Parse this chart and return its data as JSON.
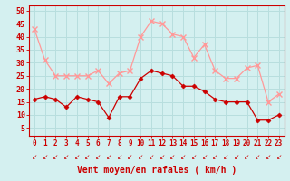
{
  "hours": [
    0,
    1,
    2,
    3,
    4,
    5,
    6,
    7,
    8,
    9,
    10,
    11,
    12,
    13,
    14,
    15,
    16,
    17,
    18,
    19,
    20,
    21,
    22,
    23
  ],
  "wind_mean": [
    16,
    17,
    16,
    13,
    17,
    16,
    15,
    9,
    17,
    17,
    24,
    27,
    26,
    25,
    21,
    21,
    19,
    16,
    15,
    15,
    15,
    8,
    8,
    10
  ],
  "wind_gusts": [
    43,
    31,
    25,
    25,
    25,
    25,
    27,
    22,
    26,
    27,
    40,
    46,
    45,
    41,
    40,
    32,
    37,
    27,
    24,
    24,
    28,
    29,
    15,
    18
  ],
  "bg_color": "#d4f0f0",
  "grid_color": "#b8dede",
  "line_color_mean": "#cc0000",
  "line_color_gusts": "#ff9999",
  "xlabel": "Vent moyen/en rafales ( km/h )",
  "yticks": [
    5,
    10,
    15,
    20,
    25,
    30,
    35,
    40,
    45,
    50
  ],
  "ylim": [
    2,
    52
  ],
  "xlim": [
    -0.5,
    23.5
  ],
  "axis_fontsize": 6,
  "label_fontsize": 7
}
